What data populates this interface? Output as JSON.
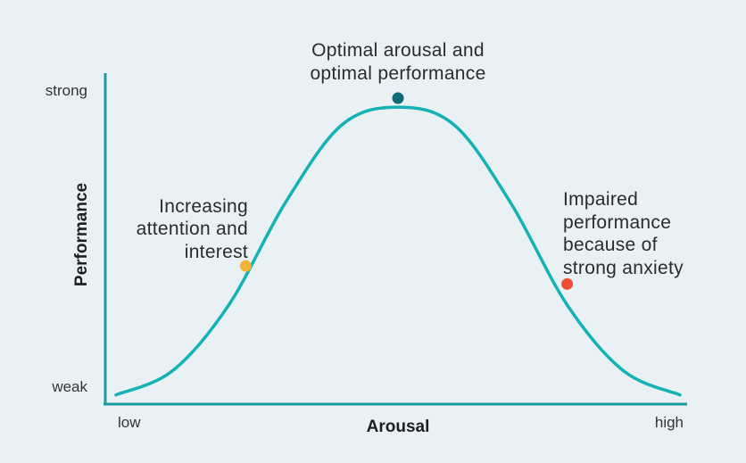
{
  "chart_data": {
    "type": "line",
    "title": "",
    "xlabel": "Arousal",
    "ylabel": "Performance",
    "x_ticks": {
      "low": "low",
      "high": "high"
    },
    "y_ticks": {
      "weak": "weak",
      "strong": "strong"
    },
    "xlim": [
      0,
      1
    ],
    "ylim": [
      0,
      1
    ],
    "grid": false,
    "legend": "none",
    "curve": {
      "shape": "inverted-u (bell)",
      "peak": {
        "x": 0.5,
        "y": 0.97
      },
      "x": [
        0,
        0.1,
        0.2,
        0.3,
        0.4,
        0.5,
        0.6,
        0.7,
        0.8,
        0.9,
        1
      ],
      "y": [
        0.01,
        0.09,
        0.31,
        0.65,
        0.91,
        0.97,
        0.91,
        0.65,
        0.31,
        0.09,
        0.01
      ]
    },
    "annotations": [
      {
        "id": "increasing",
        "lines": [
          "Increasing",
          "attention and",
          "interest"
        ],
        "point": {
          "x": 0.23,
          "y": 0.44
        },
        "color": "#f5b335"
      },
      {
        "id": "optimal",
        "lines": [
          "Optimal arousal and",
          "optimal performance"
        ],
        "point": {
          "x": 0.5,
          "y": 1.0
        },
        "color": "#0e6a76"
      },
      {
        "id": "impaired",
        "lines": [
          "Impaired",
          "performance",
          "because of",
          "strong anxiety"
        ],
        "point": {
          "x": 0.8,
          "y": 0.38
        },
        "color": "#ee4d34"
      }
    ],
    "colors": {
      "curve": "#14b2b5",
      "axis": "#1a9a9c"
    }
  }
}
